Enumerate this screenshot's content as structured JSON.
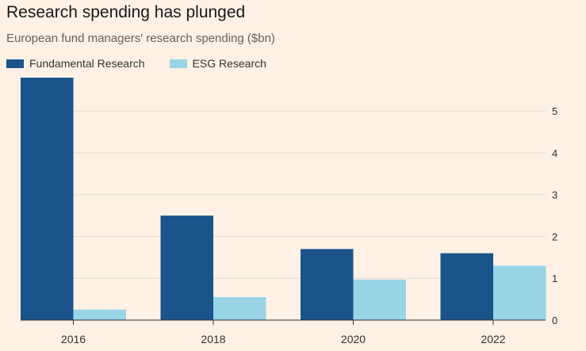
{
  "title": "Research spending has plunged",
  "subtitle": "European fund managers' research spending ($bn)",
  "colors": {
    "fundamental": "#1a548a",
    "esg": "#99d4e7",
    "background": "#fff1e5",
    "grid": "#e6d9ce",
    "axis": "#33302e"
  },
  "chart_data": {
    "type": "bar",
    "title": "Research spending has plunged",
    "subtitle": "European fund managers' research spending ($bn)",
    "categories": [
      "2016",
      "2018",
      "2020",
      "2022"
    ],
    "series": [
      {
        "name": "Fundamental Research",
        "values": [
          5.8,
          2.5,
          1.7,
          1.6
        ]
      },
      {
        "name": "ESG Research",
        "values": [
          0.25,
          0.55,
          0.97,
          1.3
        ]
      }
    ],
    "xlabel": "",
    "ylabel": "",
    "yticks": [
      0,
      1,
      2,
      3,
      4,
      5
    ],
    "ylim": [
      0,
      5.8
    ],
    "grid": true,
    "legend": "top-left"
  }
}
